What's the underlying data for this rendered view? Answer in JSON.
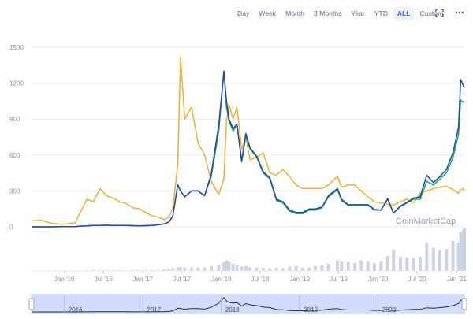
{
  "toolbar": {
    "buttons": [
      "Day",
      "Week",
      "Month",
      "3 Months",
      "Year",
      "YTD",
      "ALL",
      "Custom"
    ],
    "active": "ALL",
    "fullscreen_icon": "fullscreen-icon",
    "more_icon": "more-dots-icon"
  },
  "watermark": "CoinMarketCap",
  "colors": {
    "yellow": "#f2b12d",
    "green": "#16b05c",
    "blue": "#2544b8",
    "volume": "#ccd3e4",
    "navigator_fill": "#d4dcfb",
    "navigator_mask": "#eef1fc",
    "grid": "#e7eaf0"
  },
  "chart_data": {
    "type": "line",
    "x": [
      "2015-08-01",
      "2015-09-15",
      "2015-11-01",
      "2015-12-15",
      "2016-01-15",
      "2016-02-20",
      "2016-03-15",
      "2016-04-15",
      "2016-05-15",
      "2016-06-15",
      "2016-07-15",
      "2016-08-15",
      "2016-09-15",
      "2016-10-15",
      "2016-11-15",
      "2016-12-15",
      "2017-01-15",
      "2017-02-15",
      "2017-03-15",
      "2017-04-10",
      "2017-05-01",
      "2017-05-20",
      "2017-06-12",
      "2017-06-25",
      "2017-07-15",
      "2017-08-15",
      "2017-09-15",
      "2017-10-15",
      "2017-11-15",
      "2017-12-20",
      "2018-01-13",
      "2018-01-25",
      "2018-02-06",
      "2018-02-25",
      "2018-03-15",
      "2018-04-06",
      "2018-04-25",
      "2018-05-15",
      "2018-06-15",
      "2018-07-15",
      "2018-08-15",
      "2018-09-15",
      "2018-10-15",
      "2018-11-15",
      "2018-12-15",
      "2019-01-15",
      "2019-02-15",
      "2019-03-15",
      "2019-04-15",
      "2019-05-15",
      "2019-06-26",
      "2019-07-15",
      "2019-08-15",
      "2019-09-15",
      "2019-10-15",
      "2019-11-15",
      "2019-12-15",
      "2020-01-15",
      "2020-02-15",
      "2020-03-13",
      "2020-04-15",
      "2020-05-15",
      "2020-06-15",
      "2020-07-15",
      "2020-08-15",
      "2020-09-15",
      "2020-10-15",
      "2020-11-15",
      "2020-12-15",
      "2021-01-10",
      "2021-01-20",
      "2021-02-01",
      "2021-02-06"
    ],
    "series": [
      {
        "name": "Yellow",
        "values": [
          50,
          55,
          30,
          22,
          25,
          35,
          120,
          230,
          210,
          320,
          260,
          240,
          210,
          195,
          160,
          150,
          120,
          90,
          80,
          60,
          80,
          150,
          520,
          1420,
          900,
          1000,
          700,
          600,
          380,
          270,
          400,
          880,
          1020,
          900,
          1000,
          650,
          750,
          560,
          580,
          620,
          450,
          430,
          480,
          420,
          350,
          320,
          320,
          320,
          320,
          350,
          420,
          330,
          350,
          350,
          300,
          250,
          210,
          200,
          190,
          180,
          210,
          230,
          200,
          280,
          300,
          320,
          330,
          340,
          310,
          280,
          310,
          320,
          300
        ],
        "color": "yellow"
      },
      {
        "name": "Green",
        "values": [
          0,
          0,
          0,
          1,
          1,
          2,
          6,
          8,
          12,
          12,
          14,
          12,
          12,
          12,
          10,
          8,
          10,
          12,
          18,
          25,
          40,
          90,
          350,
          300,
          250,
          300,
          300,
          260,
          420,
          800,
          1300,
          1000,
          880,
          800,
          850,
          540,
          760,
          650,
          580,
          450,
          400,
          220,
          200,
          130,
          110,
          110,
          140,
          140,
          160,
          250,
          310,
          220,
          180,
          180,
          180,
          180,
          140,
          140,
          230,
          115,
          170,
          200,
          230,
          230,
          380,
          350,
          400,
          450,
          580,
          770,
          1060,
          1040,
          1050
        ],
        "color": "green"
      },
      {
        "name": "Blue",
        "values": [
          0,
          0,
          0,
          1,
          1,
          2,
          6,
          8,
          12,
          12,
          14,
          12,
          12,
          12,
          10,
          8,
          10,
          12,
          18,
          25,
          40,
          90,
          350,
          300,
          250,
          300,
          300,
          260,
          440,
          850,
          1300,
          1050,
          900,
          820,
          860,
          550,
          780,
          660,
          590,
          460,
          410,
          230,
          210,
          140,
          120,
          120,
          150,
          150,
          165,
          260,
          320,
          230,
          185,
          185,
          185,
          185,
          145,
          140,
          235,
          115,
          175,
          205,
          240,
          250,
          430,
          370,
          420,
          480,
          620,
          830,
          1230,
          1180,
          1160
        ],
        "color": "blue"
      }
    ],
    "y_ticks": [
      0,
      300,
      600,
      900,
      1200,
      1500
    ],
    "ylim": [
      0,
      1500
    ],
    "x_ticks": [
      "Jan '16",
      "Jul '16",
      "Jan '17",
      "Jul '17",
      "Jan '18",
      "Jul '18",
      "Jan '19",
      "Jul '19",
      "Jan '20",
      "Jul '20",
      "Jan '21"
    ],
    "x_tick_dates": [
      "2016-01-01",
      "2016-07-01",
      "2017-01-01",
      "2017-07-01",
      "2018-01-01",
      "2018-07-01",
      "2019-01-01",
      "2019-07-01",
      "2020-01-01",
      "2020-07-01",
      "2021-01-01"
    ],
    "volume": [
      1,
      1,
      1,
      1,
      1,
      1,
      1,
      2,
      2,
      2,
      2,
      2,
      2,
      1,
      2,
      2,
      2,
      2,
      2,
      4,
      6,
      8,
      10,
      12,
      10,
      10,
      10,
      10,
      14,
      18,
      25,
      30,
      28,
      20,
      18,
      12,
      14,
      10,
      10,
      9,
      8,
      9,
      8,
      12,
      14,
      9,
      10,
      14,
      16,
      20,
      30,
      28,
      26,
      22,
      30,
      28,
      22,
      28,
      42,
      60,
      40,
      38,
      36,
      40,
      80,
      65,
      58,
      62,
      85,
      80,
      110,
      115,
      120
    ],
    "navigator": {
      "labels": [
        "2016",
        "2017",
        "2018",
        "2019",
        "2020"
      ],
      "label_dates": [
        "2016-01-01",
        "2017-01-01",
        "2018-01-01",
        "2019-01-01",
        "2020-01-01"
      ]
    },
    "grid": true,
    "legend": "none"
  }
}
